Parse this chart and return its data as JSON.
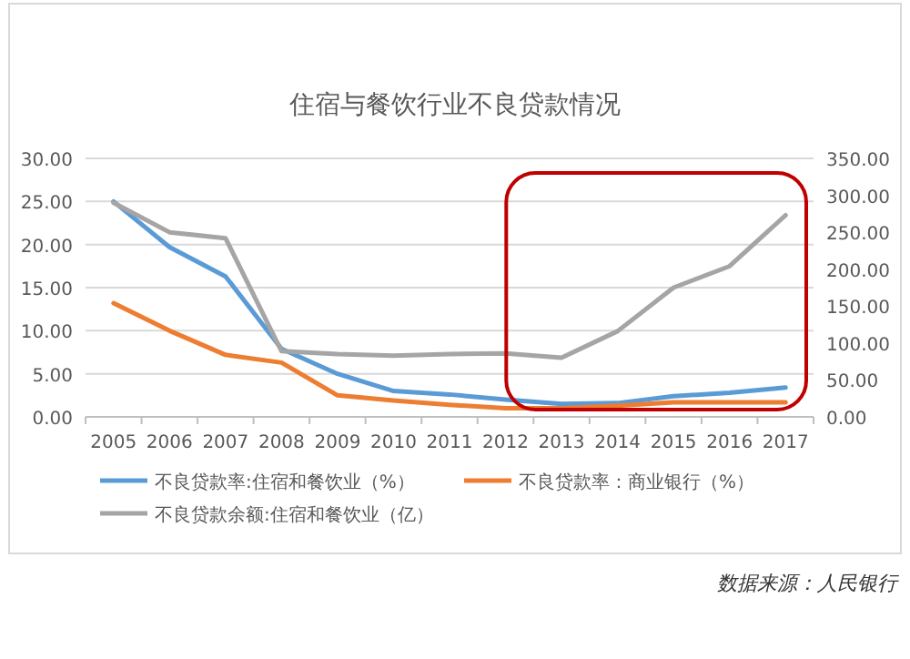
{
  "chart_data": {
    "type": "line",
    "title": "住宿与餐饮行业不良贷款情况",
    "categories": [
      "2005",
      "2006",
      "2007",
      "2008",
      "2009",
      "2010",
      "2011",
      "2012",
      "2013",
      "2014",
      "2015",
      "2016",
      "2017"
    ],
    "series": [
      {
        "name": "不良贷款率:住宿和餐饮业（%）",
        "color": "#5b9bd5",
        "values": [
          25.0,
          19.7,
          16.3,
          7.9,
          5.0,
          3.0,
          2.6,
          2.0,
          1.5,
          1.6,
          2.4,
          2.8,
          3.4
        ]
      },
      {
        "name": "不良贷款率：商业银行（%）",
        "color": "#ed7d31",
        "values": [
          13.2,
          10.0,
          7.2,
          6.3,
          2.5,
          1.9,
          1.4,
          1.0,
          1.0,
          1.3,
          1.7,
          1.7,
          1.7
        ]
      },
      {
        "name": "不良贷款余额:住宿和餐饮业（亿）",
        "color": "#a5a5a5",
        "axis": "y2",
        "values": [
          290,
          250,
          242,
          89,
          85,
          83,
          85,
          86,
          80,
          116,
          175,
          204,
          273
        ]
      }
    ],
    "ylim": [
      0,
      30
    ],
    "yticks": [
      {
        "value": 0,
        "label": "0.00"
      },
      {
        "value": 5,
        "label": "5.00"
      },
      {
        "value": 10,
        "label": "10.00"
      },
      {
        "value": 15,
        "label": "15.00"
      },
      {
        "value": 20,
        "label": "20.00"
      },
      {
        "value": 25,
        "label": "25.00"
      },
      {
        "value": 30,
        "label": "30.00"
      }
    ],
    "y2lim": [
      0,
      350
    ],
    "y2ticks": [
      {
        "value": 0,
        "label": "0.00"
      },
      {
        "value": 50,
        "label": "50.00"
      },
      {
        "value": 100,
        "label": "100.00"
      },
      {
        "value": 150,
        "label": "150.00"
      },
      {
        "value": 200,
        "label": "200.00"
      },
      {
        "value": 250,
        "label": "250.00"
      },
      {
        "value": 300,
        "label": "300.00"
      },
      {
        "value": 350,
        "label": "350.00"
      }
    ],
    "grid": "y",
    "legend": "bottom",
    "marker": "none",
    "line_style": "solid",
    "annotations": [
      "数据来源：人民银行"
    ]
  }
}
